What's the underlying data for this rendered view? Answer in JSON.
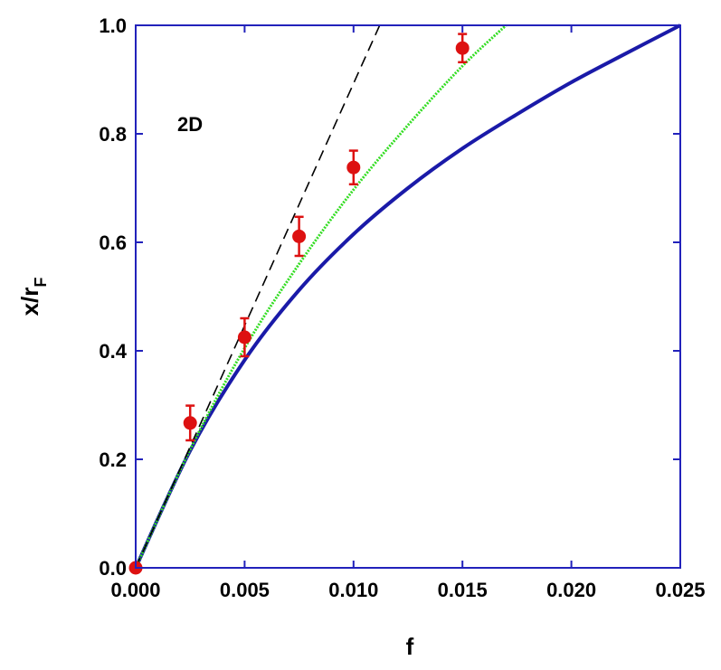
{
  "chart_data": {
    "type": "line",
    "title": "",
    "xlabel": "f",
    "ylabel_main": "x/r",
    "ylabel_sub": "F",
    "annotation": "2D",
    "xlim": [
      0,
      0.025
    ],
    "ylim": [
      0,
      1.0
    ],
    "x_ticks": [
      0.0,
      0.005,
      0.01,
      0.015,
      0.02,
      0.025
    ],
    "x_tick_labels": [
      "0.000",
      "0.005",
      "0.010",
      "0.015",
      "0.020",
      "0.025"
    ],
    "y_ticks": [
      0.0,
      0.2,
      0.4,
      0.6,
      0.8,
      1.0
    ],
    "y_tick_labels": [
      "0.0",
      "0.2",
      "0.4",
      "0.6",
      "0.8",
      "1.0"
    ],
    "grid": false,
    "colors": {
      "axis": "#2222bb",
      "blue_curve": "#1a1aa8",
      "green_curve": "#33dd22",
      "dashed_line": "#000000",
      "markers": "#dd1111"
    },
    "series": [
      {
        "style": "solid-blue",
        "x": [
          0,
          0.0025,
          0.005,
          0.0075,
          0.01,
          0.0125,
          0.015,
          0.0175,
          0.02,
          0.0225,
          0.025
        ],
        "y": [
          0,
          0.216,
          0.383,
          0.512,
          0.615,
          0.7,
          0.773,
          0.836,
          0.895,
          0.948,
          1.0
        ]
      },
      {
        "style": "dotted-green",
        "x": [
          0,
          0.0025,
          0.005,
          0.0075,
          0.01,
          0.0125,
          0.015,
          0.017
        ],
        "y": [
          0,
          0.218,
          0.405,
          0.56,
          0.697,
          0.816,
          0.925,
          1.0
        ]
      },
      {
        "style": "dashed-black",
        "x": [
          0,
          0.0112
        ],
        "y": [
          0,
          1.0
        ]
      },
      {
        "style": "markers-red",
        "x": [
          0,
          0.0025,
          0.005,
          0.0075,
          0.01,
          0.015
        ],
        "y": [
          0,
          0.267,
          0.425,
          0.611,
          0.738,
          0.958
        ],
        "err": [
          0,
          0.032,
          0.035,
          0.036,
          0.031,
          0.026
        ]
      }
    ]
  }
}
